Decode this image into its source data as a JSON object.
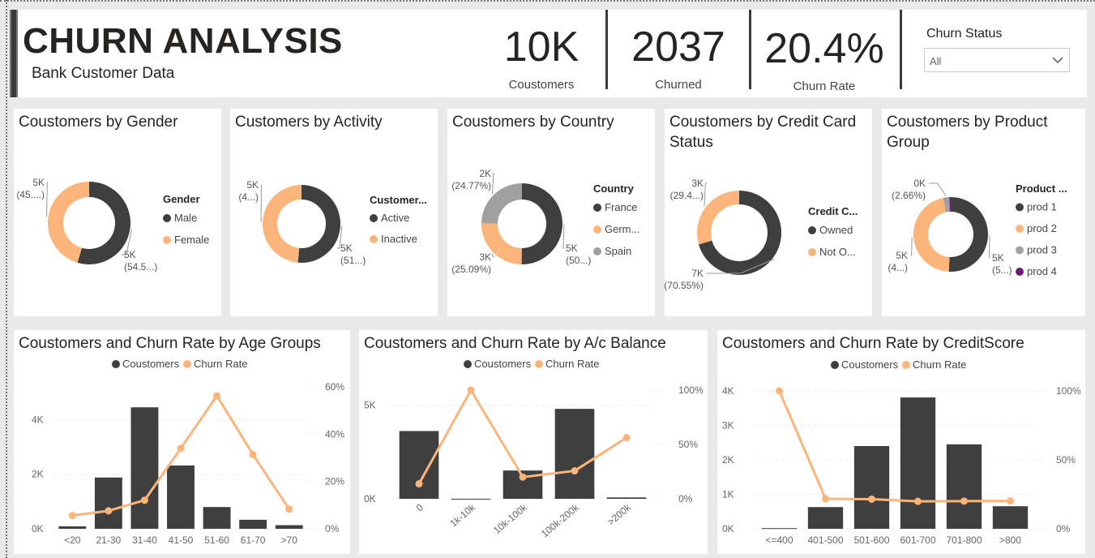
{
  "header": {
    "title": "CHURN ANALYSIS",
    "subtitle": "Bank Customer Data",
    "kpis": [
      {
        "value": "10K",
        "label": "Coustomers"
      },
      {
        "value": "2037",
        "label": "Churned"
      },
      {
        "value": "20.4%",
        "label": "Churn Rate"
      }
    ],
    "slicer": {
      "title": "Churn Status",
      "value": "All"
    }
  },
  "colors": {
    "dark": "#3f3f3f",
    "orange": "#fbb57a",
    "gray": "#a0a0a0",
    "purple": "#6e1a78"
  },
  "donuts": [
    {
      "title": [
        "Coustomers by Gender"
      ],
      "legend_title": "Gender",
      "slices": [
        {
          "name": "Male",
          "value": 54.57,
          "color": "dark",
          "label1": "5K",
          "label2": "(54.5...)"
        },
        {
          "name": "Female",
          "value": 45.43,
          "color": "orange",
          "label1": "5K",
          "label2": "(45....)"
        }
      ]
    },
    {
      "title": [
        "Customers by Activity"
      ],
      "legend_title": "Customer...",
      "slices": [
        {
          "name": "Active",
          "value": 51.5,
          "color": "dark",
          "label1": "5K",
          "label2": "(51...)"
        },
        {
          "name": "Inactive",
          "value": 48.5,
          "color": "orange",
          "label1": "5K",
          "label2": "(4...)"
        }
      ]
    },
    {
      "title": [
        "Coustomers by Country"
      ],
      "legend_title": "Country",
      "slices": [
        {
          "name": "France",
          "value": 50.14,
          "color": "dark",
          "label1": "5K",
          "label2": "(50...)"
        },
        {
          "name": "Germ...",
          "value": 25.09,
          "color": "orange",
          "label1": "3K",
          "label2": "(25.09%)"
        },
        {
          "name": "Spain",
          "value": 24.77,
          "color": "gray",
          "label1": "2K",
          "label2": "(24.77%)"
        }
      ]
    },
    {
      "title": [
        "Coustomers by Credit Card",
        "Status"
      ],
      "legend_title": "Credit C...",
      "slices": [
        {
          "name": "Owned",
          "value": 70.55,
          "color": "dark",
          "label1": "7K",
          "label2": "(70.55%)"
        },
        {
          "name": "Not O...",
          "value": 29.45,
          "color": "orange",
          "label1": "3K",
          "label2": "(29.4...)"
        }
      ]
    },
    {
      "title": [
        "Coustomers by Product",
        "Group"
      ],
      "legend_title": "Product ...",
      "slices": [
        {
          "name": "prod 1",
          "value": 50.84,
          "color": "dark",
          "label1": "5K",
          "label2": "(5...)"
        },
        {
          "name": "prod 2",
          "value": 45.9,
          "color": "orange",
          "label1": "5K",
          "label2": "(4...)"
        },
        {
          "name": "prod 3",
          "value": 2.66,
          "color": "gray",
          "label1": "0K",
          "label2": "(2.66%)"
        },
        {
          "name": "prod 4",
          "value": 0.6,
          "color": "purple",
          "label1": "",
          "label2": ""
        }
      ]
    }
  ],
  "chart_data": [
    {
      "type": "bar",
      "title": "Coustomers and Churn Rate by Age Groups",
      "legend": [
        "Coustomers",
        "Churn Rate"
      ],
      "categories": [
        "<20",
        "21-30",
        "31-40",
        "41-50",
        "51-60",
        "61-70",
        ">70"
      ],
      "series": [
        {
          "name": "Coustomers",
          "type": "bar",
          "values": [
            89,
            1879,
            4451,
            2320,
            797,
            331,
            133
          ]
        },
        {
          "name": "Churn Rate",
          "type": "line",
          "axis": "right",
          "values": [
            5.6,
            7.6,
            12.1,
            34.0,
            56.2,
            31.4,
            8.3
          ]
        }
      ],
      "y_ticks": [
        "0K",
        "2K",
        "4K"
      ],
      "ylim": [
        0,
        5200
      ],
      "y2_ticks": [
        "0%",
        "20%",
        "40%",
        "60%"
      ],
      "y2lim": [
        0,
        60
      ]
    },
    {
      "type": "bar",
      "title": "Coustomers and Churn Rate by A/c Balance",
      "legend": [
        "Coustomers",
        "Churn Rate"
      ],
      "categories": [
        "0",
        "1k-10k",
        "10k-100k",
        "100k-200k",
        ">200k"
      ],
      "series": [
        {
          "name": "Coustomers",
          "type": "bar",
          "values": [
            3617,
            2,
            1509,
            4799,
            73
          ]
        },
        {
          "name": "Churn Rate",
          "type": "line",
          "axis": "right",
          "values": [
            13.8,
            100,
            20.0,
            25.7,
            56.2
          ]
        }
      ],
      "y_ticks": [
        "0K",
        "5K"
      ],
      "ylim": [
        0,
        5800
      ],
      "y2_ticks": [
        "0%",
        "50%",
        "100%"
      ],
      "y2lim": [
        0,
        100
      ]
    },
    {
      "type": "bar",
      "title": "Coustomers and Churn Rate by CreditScore",
      "legend": [
        "Coustomers",
        "Churn Rate"
      ],
      "categories": [
        "<=400",
        "401-500",
        "501-600",
        "601-700",
        "701-800",
        ">800"
      ],
      "series": [
        {
          "name": "Coustomers",
          "type": "bar",
          "values": [
            19,
            630,
            2400,
            3810,
            2450,
            655
          ]
        },
        {
          "name": "Churn Rate",
          "type": "line",
          "axis": "right",
          "values": [
            100,
            21.8,
            21.5,
            19.9,
            20.1,
            20.2
          ]
        }
      ],
      "y_ticks": [
        "0K",
        "1K",
        "2K",
        "3K",
        "4K"
      ],
      "ylim": [
        0,
        4000
      ],
      "y2_ticks": [
        "0%",
        "50%",
        "100%"
      ],
      "y2lim": [
        0,
        100
      ]
    }
  ]
}
